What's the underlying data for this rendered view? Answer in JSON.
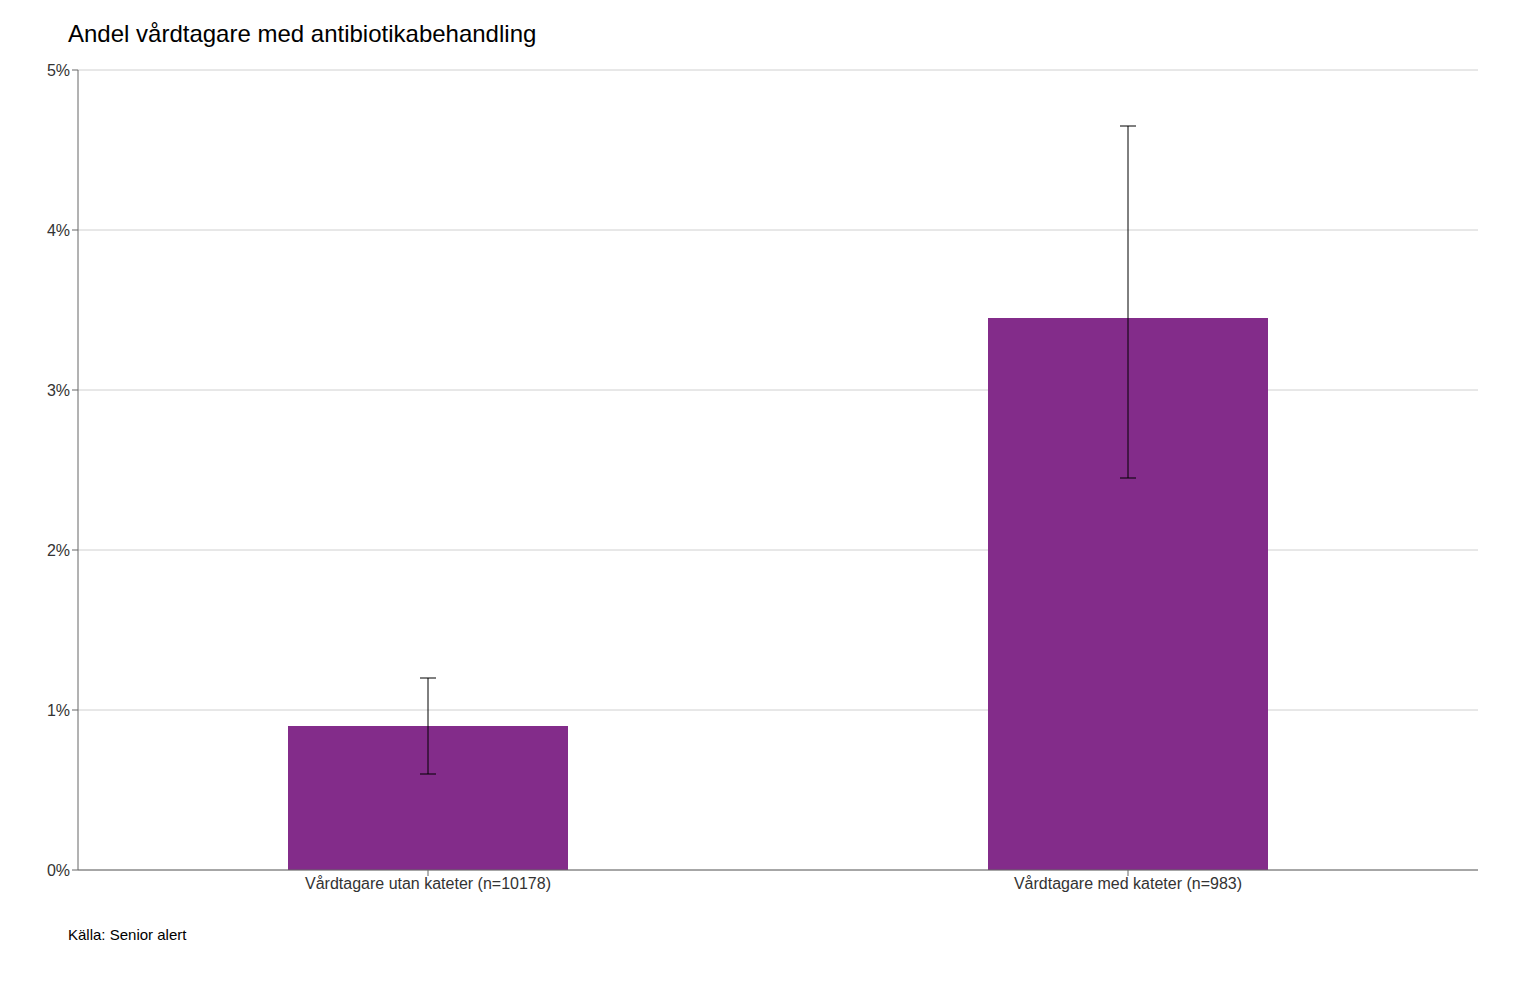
{
  "chart_data": {
    "type": "bar",
    "title": "Andel vårdtagare med antibiotikabehandling",
    "annotations": [
      "Källa: Senior alert"
    ],
    "categories": [
      "Vårdtagare utan kateter (n=10178)",
      "Vårdtagare med kateter (n=983)"
    ],
    "values": [
      0.009,
      0.0345
    ],
    "error_lower": [
      0.003,
      0.01
    ],
    "error_upper": [
      0.003,
      0.012
    ],
    "color": "#832c8a",
    "ylim": [
      0,
      0.05
    ],
    "yticks": [
      {
        "value": 0,
        "label": "0%"
      },
      {
        "value": 0.01,
        "label": "1%"
      },
      {
        "value": 0.02,
        "label": "2%"
      },
      {
        "value": 0.03,
        "label": "3%"
      },
      {
        "value": 0.04,
        "label": "4%"
      },
      {
        "value": 0.05,
        "label": "5%"
      }
    ],
    "grid": true
  }
}
